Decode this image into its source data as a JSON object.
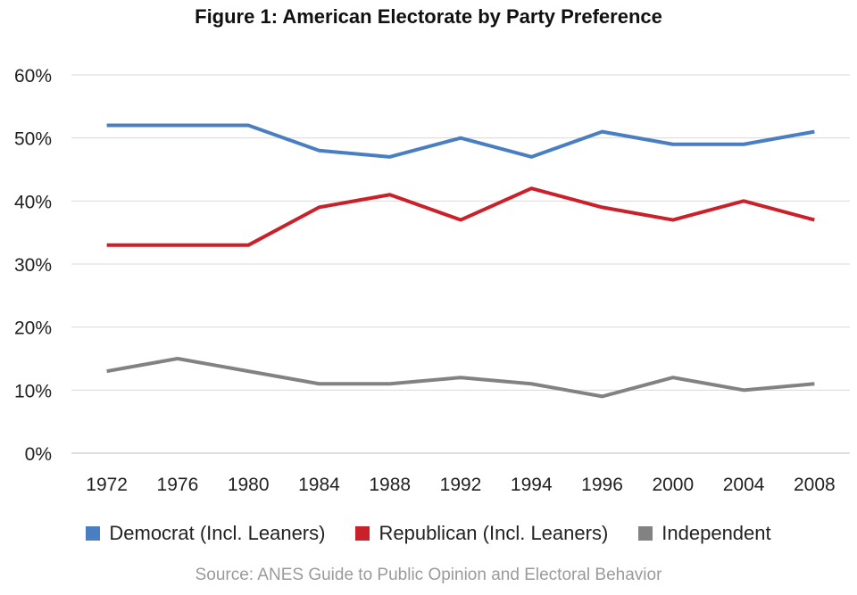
{
  "chart_data": {
    "type": "line",
    "title": "Figure 1: American Electorate by Party Preference",
    "categories": [
      "1972",
      "1976",
      "1980",
      "1984",
      "1988",
      "1992",
      "1994",
      "1996",
      "2000",
      "2004",
      "2008"
    ],
    "series": [
      {
        "name": "Democrat (Incl. Leaners)",
        "color": "#4a7ec2",
        "values": [
          52,
          52,
          52,
          48,
          47,
          50,
          47,
          51,
          49,
          49,
          51
        ]
      },
      {
        "name": "Republican (Incl. Leaners)",
        "color": "#c9202a",
        "values": [
          33,
          33,
          33,
          39,
          41,
          37,
          42,
          39,
          37,
          40,
          37
        ]
      },
      {
        "name": "Independent",
        "color": "#828282",
        "values": [
          13,
          15,
          13,
          11,
          11,
          12,
          11,
          9,
          12,
          10,
          11
        ]
      }
    ],
    "ylim": [
      0,
      60
    ],
    "yticks": [
      "0%",
      "10%",
      "20%",
      "30%",
      "40%",
      "50%",
      "60%"
    ],
    "xlabel": "",
    "ylabel": "",
    "grid": true,
    "legend": "bottom",
    "source": "Source: ANES Guide to Public Opinion and Electoral Behavior"
  }
}
